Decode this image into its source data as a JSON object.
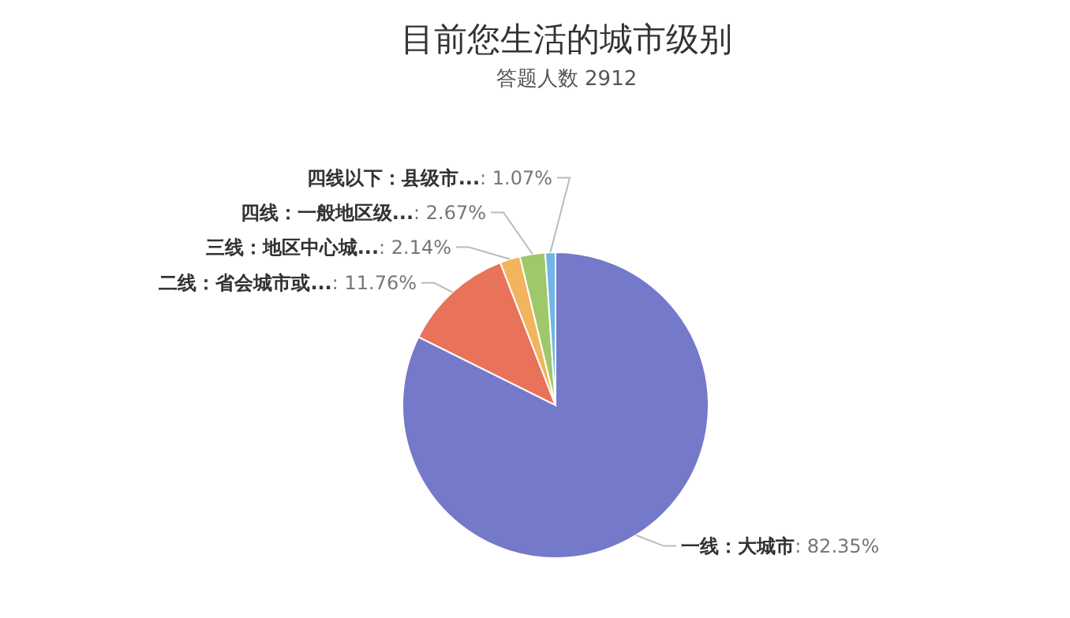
{
  "chart_data": {
    "type": "pie",
    "title": "目前您生活的城市级别",
    "subtitle": "答题人数 2912",
    "categories": [
      "一线：大城市",
      "二线：省会城市或...",
      "三线：地区中心城...",
      "四线：一般地区级...",
      "四线以下：县级市..."
    ],
    "values": [
      82.35,
      11.76,
      2.14,
      2.67,
      1.07
    ],
    "value_labels": [
      ": 82.35%",
      ": 11.76%",
      ": 2.14%",
      ": 2.67%",
      ": 1.07%"
    ],
    "colors": [
      "#7479c9",
      "#e8735a",
      "#f2b45c",
      "#9fc86a",
      "#6fb6e6"
    ]
  }
}
